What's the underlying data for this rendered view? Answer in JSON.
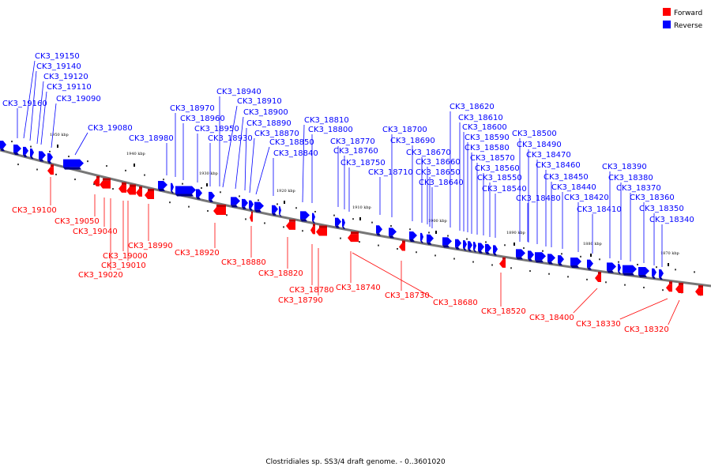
{
  "legend": {
    "forward": {
      "label": "Forward",
      "color": "#ff0000"
    },
    "reverse": {
      "label": "Reverse",
      "color": "#0000ff"
    }
  },
  "caption": "Clostridiales sp. SS3/4 draft genome. - 0..3601020",
  "ticks": [
    "1950 kbp",
    "1940 kbp",
    "1930 kbp",
    "1920 kbp",
    "1910 kbp",
    "1900 kbp",
    "1890 kbp",
    "1880 kbp",
    "1870 kbp"
  ],
  "reverse_labels": [
    "CK3_19150",
    "CK3_19140",
    "CK3_19120",
    "CK3_19110",
    "CK3_19160",
    "CK3_19090",
    "CK3_19080",
    "CK3_18980",
    "CK3_18970",
    "CK3_18960",
    "CK3_18950",
    "CK3_18930",
    "CK3_18940",
    "CK3_18910",
    "CK3_18900",
    "CK3_18890",
    "CK3_18870",
    "CK3_18850",
    "CK3_18840",
    "CK3_18810",
    "CK3_18800",
    "CK3_18770",
    "CK3_18760",
    "CK3_18750",
    "CK3_18710",
    "CK3_18700",
    "CK3_18690",
    "CK3_18670",
    "CK3_18660",
    "CK3_18650",
    "CK3_18640",
    "CK3_18620",
    "CK3_18610",
    "CK3_18600",
    "CK3_18590",
    "CK3_18580",
    "CK3_18570",
    "CK3_18560",
    "CK3_18550",
    "CK3_18540",
    "CK3_18500",
    "CK3_18490",
    "CK3_18470",
    "CK3_18460",
    "CK3_18450",
    "CK3_18440",
    "CK3_18480",
    "CK3_18420",
    "CK3_18410",
    "CK3_18390",
    "CK3_18380",
    "CK3_18370",
    "CK3_18360",
    "CK3_18350",
    "CK3_18340"
  ],
  "forward_labels": [
    "CK3_19100",
    "CK3_19050",
    "CK3_19040",
    "CK3_18990",
    "CK3_19000",
    "CK3_19010",
    "CK3_19020",
    "CK3_18920",
    "CK3_18880",
    "CK3_18820",
    "CK3_18780",
    "CK3_18790",
    "CK3_18740",
    "CK3_18730",
    "CK3_18680",
    "CK3_18520",
    "CK3_18400",
    "CK3_18330",
    "CK3_18320"
  ]
}
